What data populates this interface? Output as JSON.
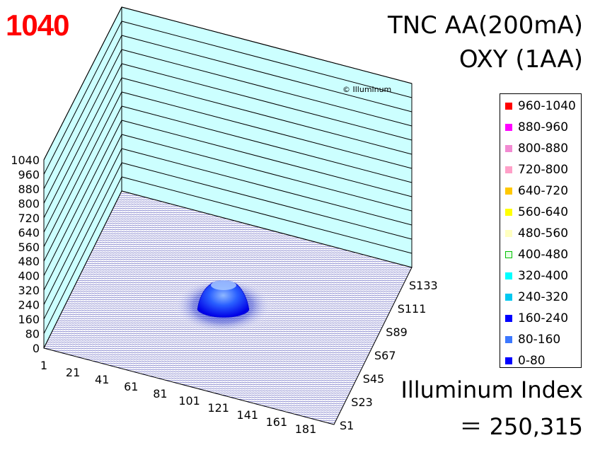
{
  "header": {
    "max_value": "1040",
    "title_line1": "TNC AA(200mA)",
    "title_line2": "OXY (1AA)"
  },
  "watermark": "© Illuminum",
  "footer": {
    "index_label": "Illuminum Index",
    "index_value": "＝ 250,315"
  },
  "legend": [
    {
      "label": "960-1040",
      "color": "#ff0000"
    },
    {
      "label": "880-960",
      "color": "#ff00ff"
    },
    {
      "label": "800-880",
      "color": "#f28ad2"
    },
    {
      "label": "720-800",
      "color": "#ffa0c8"
    },
    {
      "label": "640-720",
      "color": "#ffc800"
    },
    {
      "label": "560-640",
      "color": "#ffff00"
    },
    {
      "label": "480-560",
      "color": "#ffffc0"
    },
    {
      "label": "400-480",
      "color": "#e6ffe6"
    },
    {
      "label": "320-400",
      "color": "#00ffff"
    },
    {
      "label": "240-320",
      "color": "#00c8f0"
    },
    {
      "label": "160-240",
      "color": "#0000ff"
    },
    {
      "label": "80-160",
      "color": "#3c78ff"
    },
    {
      "label": "0-80",
      "color": "#0000ff"
    }
  ],
  "chart_data": {
    "type": "surface3d",
    "zlim": [
      0,
      1040
    ],
    "z_ticks": [
      "1040",
      "960",
      "880",
      "800",
      "720",
      "640",
      "560",
      "480",
      "400",
      "320",
      "240",
      "160",
      "80",
      "0"
    ],
    "x_ticks": [
      "1",
      "21",
      "41",
      "61",
      "81",
      "101",
      "121",
      "141",
      "161",
      "181"
    ],
    "y_ticks": [
      "S1",
      "S23",
      "S45",
      "S67",
      "S89",
      "S111",
      "S133"
    ],
    "x_range": [
      1,
      200
    ],
    "y_range": [
      1,
      150
    ],
    "peak": {
      "x": 95,
      "y": 75,
      "value": 240
    },
    "description_colors": {
      "wall": "#ccffff",
      "floor_mesh": "#2222aa",
      "spot": "#0000ff"
    }
  }
}
